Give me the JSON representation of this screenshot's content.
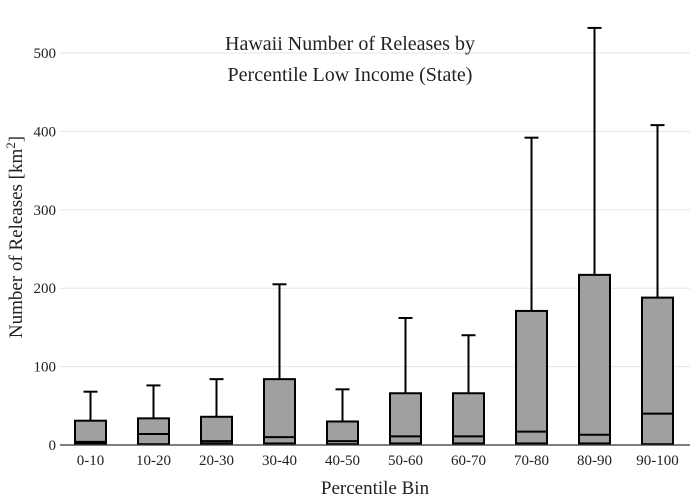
{
  "chart_data": {
    "type": "box",
    "title_lines": [
      "Hawaii Number of Releases by",
      "Percentile Low Income (State)"
    ],
    "xlabel": "Percentile Bin",
    "ylabel_main": "Number of Releases  [km",
    "ylabel_sup": "2",
    "ylabel_end": "]",
    "ylim": [
      0,
      540
    ],
    "yticks": [
      0,
      100,
      200,
      300,
      400,
      500
    ],
    "grid": true,
    "categories": [
      "0-10",
      "10-20",
      "20-30",
      "30-40",
      "40-50",
      "50-60",
      "60-70",
      "70-80",
      "80-90",
      "90-100"
    ],
    "boxes": [
      {
        "min": 0,
        "q1": 2,
        "median": 4,
        "q3": 31,
        "max": 68
      },
      {
        "min": 0,
        "q1": 1,
        "median": 14,
        "q3": 34,
        "max": 76
      },
      {
        "min": 0,
        "q1": 2,
        "median": 5,
        "q3": 36,
        "max": 84
      },
      {
        "min": 0,
        "q1": 2,
        "median": 10,
        "q3": 84,
        "max": 205
      },
      {
        "min": 0,
        "q1": 1,
        "median": 5,
        "q3": 30,
        "max": 71
      },
      {
        "min": 0,
        "q1": 2,
        "median": 11,
        "q3": 66,
        "max": 162
      },
      {
        "min": 0,
        "q1": 2,
        "median": 11,
        "q3": 66,
        "max": 140
      },
      {
        "min": 0,
        "q1": 2,
        "median": 17,
        "q3": 171,
        "max": 392
      },
      {
        "min": 0,
        "q1": 2,
        "median": 13,
        "q3": 217,
        "max": 532
      },
      {
        "min": 0,
        "q1": 1,
        "median": 40,
        "q3": 188,
        "max": 408
      }
    ]
  }
}
